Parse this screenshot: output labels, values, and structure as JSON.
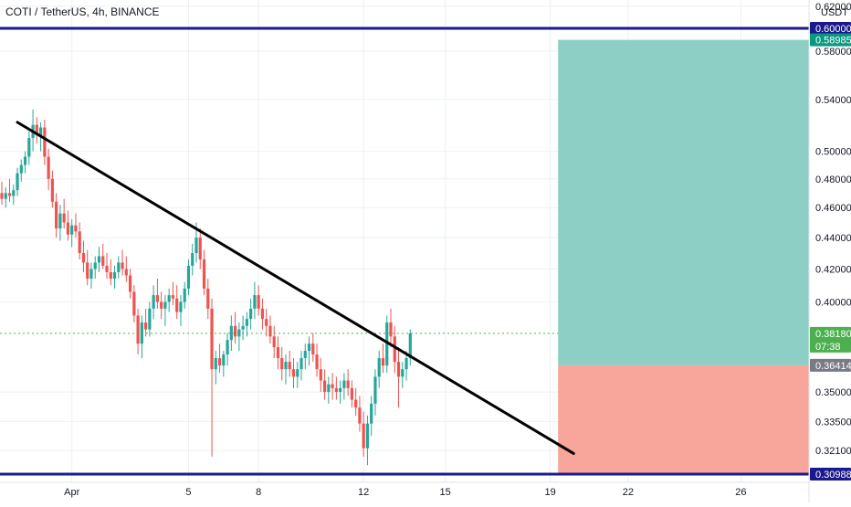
{
  "header": {
    "title": "COTI / TetherUS, 4h, BINANCE"
  },
  "colors": {
    "up": "#26a69a",
    "down": "#ef5350",
    "hline": "#1a1a8c",
    "trendline": "#000000",
    "target_zone": "#8ecfc5",
    "stop_zone": "#f8a59c",
    "current_price": "#4caf50",
    "grid": "#eef0f3"
  },
  "chart_data": {
    "type": "candlestick",
    "symbol": "COTI / TetherUS",
    "interval": "4h",
    "exchange": "BINANCE",
    "currency": "USDT",
    "y_scale": "log",
    "ylim": [
      0.305,
      0.625
    ],
    "x_ticks": [
      {
        "label": "Apr",
        "bar": 18
      },
      {
        "label": "5",
        "bar": 48
      },
      {
        "label": "8",
        "bar": 66
      },
      {
        "label": "12",
        "bar": 93
      },
      {
        "label": "15",
        "bar": 114
      },
      {
        "label": "19",
        "bar": 141
      },
      {
        "label": "22",
        "bar": 161
      },
      {
        "label": "26",
        "bar": 190
      }
    ],
    "x_bar_range": [
      0,
      204
    ],
    "y_ticks": [
      0.62,
      0.58,
      0.54,
      0.5,
      0.48,
      0.46,
      0.44,
      0.42,
      0.4,
      0.35,
      0.335,
      0.321
    ],
    "y_tick_labels": [
      "0.62000",
      "0.58000",
      "0.54000",
      "0.50000",
      "0.48000",
      "0.46000",
      "0.44000",
      "0.42000",
      "0.40000",
      "0.35000",
      "0.33500",
      "0.32100"
    ],
    "price_badges": [
      {
        "label": "0.60000",
        "value": 0.6,
        "kind": "hline"
      },
      {
        "label": "0.58985",
        "value": 0.58985,
        "kind": "target"
      },
      {
        "label": "0.38180",
        "sub": "07:38",
        "value": 0.3818,
        "kind": "current"
      },
      {
        "label": "0.36414",
        "value": 0.36414,
        "kind": "entry"
      },
      {
        "label": "0.30988",
        "value": 0.30988,
        "kind": "hline"
      }
    ],
    "horizontal_lines": [
      0.6,
      0.30988
    ],
    "current_price": 0.3818,
    "trendline": {
      "from": {
        "bar": 4,
        "price": 0.522
      },
      "to": {
        "bar": 147,
        "price": 0.3195
      }
    },
    "position": {
      "start_bar": 143,
      "end_bar": 204,
      "target": 0.58985,
      "entry": 0.36414,
      "stop": 0.30988
    },
    "candles": [
      [
        0.47,
        0.478,
        0.462,
        0.466
      ],
      [
        0.466,
        0.474,
        0.46,
        0.47
      ],
      [
        0.47,
        0.48,
        0.464,
        0.468
      ],
      [
        0.468,
        0.476,
        0.462,
        0.472
      ],
      [
        0.472,
        0.488,
        0.468,
        0.484
      ],
      [
        0.484,
        0.494,
        0.478,
        0.49
      ],
      [
        0.49,
        0.5,
        0.484,
        0.496
      ],
      [
        0.496,
        0.515,
        0.49,
        0.51
      ],
      [
        0.51,
        0.532,
        0.5,
        0.52
      ],
      [
        0.52,
        0.526,
        0.506,
        0.512
      ],
      [
        0.512,
        0.522,
        0.5,
        0.518
      ],
      [
        0.518,
        0.524,
        0.49,
        0.496
      ],
      [
        0.496,
        0.502,
        0.472,
        0.48
      ],
      [
        0.48,
        0.486,
        0.46,
        0.464
      ],
      [
        0.464,
        0.47,
        0.44,
        0.446
      ],
      [
        0.446,
        0.462,
        0.438,
        0.456
      ],
      [
        0.456,
        0.466,
        0.446,
        0.45
      ],
      [
        0.45,
        0.458,
        0.438,
        0.442
      ],
      [
        0.442,
        0.452,
        0.434,
        0.448
      ],
      [
        0.448,
        0.456,
        0.44,
        0.444
      ],
      [
        0.444,
        0.45,
        0.426,
        0.43
      ],
      [
        0.43,
        0.438,
        0.418,
        0.424
      ],
      [
        0.424,
        0.432,
        0.41,
        0.414
      ],
      [
        0.414,
        0.424,
        0.408,
        0.42
      ],
      [
        0.42,
        0.428,
        0.414,
        0.424
      ],
      [
        0.424,
        0.434,
        0.418,
        0.428
      ],
      [
        0.428,
        0.436,
        0.42,
        0.422
      ],
      [
        0.422,
        0.43,
        0.414,
        0.418
      ],
      [
        0.418,
        0.426,
        0.41,
        0.414
      ],
      [
        0.414,
        0.422,
        0.408,
        0.418
      ],
      [
        0.418,
        0.428,
        0.414,
        0.424
      ],
      [
        0.424,
        0.432,
        0.416,
        0.42
      ],
      [
        0.42,
        0.428,
        0.412,
        0.416
      ],
      [
        0.416,
        0.42,
        0.402,
        0.406
      ],
      [
        0.406,
        0.41,
        0.388,
        0.392
      ],
      [
        0.392,
        0.396,
        0.37,
        0.376
      ],
      [
        0.376,
        0.392,
        0.368,
        0.388
      ],
      [
        0.388,
        0.396,
        0.38,
        0.384
      ],
      [
        0.384,
        0.4,
        0.38,
        0.396
      ],
      [
        0.396,
        0.41,
        0.39,
        0.404
      ],
      [
        0.404,
        0.414,
        0.396,
        0.4
      ],
      [
        0.4,
        0.406,
        0.39,
        0.396
      ],
      [
        0.396,
        0.404,
        0.386,
        0.4
      ],
      [
        0.4,
        0.408,
        0.394,
        0.404
      ],
      [
        0.404,
        0.412,
        0.398,
        0.402
      ],
      [
        0.402,
        0.41,
        0.39,
        0.394
      ],
      [
        0.394,
        0.404,
        0.386,
        0.4
      ],
      [
        0.4,
        0.412,
        0.396,
        0.408
      ],
      [
        0.408,
        0.426,
        0.404,
        0.422
      ],
      [
        0.422,
        0.436,
        0.416,
        0.43
      ],
      [
        0.43,
        0.45,
        0.424,
        0.44
      ],
      [
        0.44,
        0.446,
        0.42,
        0.426
      ],
      [
        0.426,
        0.432,
        0.404,
        0.408
      ],
      [
        0.408,
        0.414,
        0.39,
        0.396
      ],
      [
        0.396,
        0.402,
        0.318,
        0.362
      ],
      [
        0.362,
        0.372,
        0.354,
        0.368
      ],
      [
        0.368,
        0.376,
        0.36,
        0.364
      ],
      [
        0.364,
        0.372,
        0.358,
        0.37
      ],
      [
        0.37,
        0.382,
        0.364,
        0.378
      ],
      [
        0.378,
        0.392,
        0.372,
        0.386
      ],
      [
        0.386,
        0.394,
        0.376,
        0.38
      ],
      [
        0.38,
        0.388,
        0.372,
        0.384
      ],
      [
        0.384,
        0.392,
        0.378,
        0.386
      ],
      [
        0.386,
        0.394,
        0.38,
        0.39
      ],
      [
        0.39,
        0.402,
        0.384,
        0.396
      ],
      [
        0.396,
        0.412,
        0.39,
        0.404
      ],
      [
        0.404,
        0.41,
        0.392,
        0.396
      ],
      [
        0.396,
        0.402,
        0.384,
        0.39
      ],
      [
        0.39,
        0.396,
        0.38,
        0.386
      ],
      [
        0.386,
        0.392,
        0.376,
        0.38
      ],
      [
        0.38,
        0.386,
        0.368,
        0.374
      ],
      [
        0.374,
        0.38,
        0.362,
        0.368
      ],
      [
        0.368,
        0.374,
        0.356,
        0.362
      ],
      [
        0.362,
        0.37,
        0.354,
        0.366
      ],
      [
        0.366,
        0.372,
        0.358,
        0.362
      ],
      [
        0.362,
        0.368,
        0.352,
        0.358
      ],
      [
        0.358,
        0.366,
        0.352,
        0.362
      ],
      [
        0.362,
        0.372,
        0.356,
        0.368
      ],
      [
        0.368,
        0.376,
        0.362,
        0.372
      ],
      [
        0.372,
        0.38,
        0.364,
        0.376
      ],
      [
        0.376,
        0.382,
        0.366,
        0.37
      ],
      [
        0.37,
        0.376,
        0.358,
        0.362
      ],
      [
        0.362,
        0.368,
        0.35,
        0.356
      ],
      [
        0.356,
        0.362,
        0.346,
        0.35
      ],
      [
        0.35,
        0.358,
        0.344,
        0.354
      ],
      [
        0.354,
        0.36,
        0.346,
        0.352
      ],
      [
        0.352,
        0.358,
        0.346,
        0.35
      ],
      [
        0.35,
        0.356,
        0.344,
        0.352
      ],
      [
        0.352,
        0.36,
        0.346,
        0.356
      ],
      [
        0.356,
        0.362,
        0.348,
        0.352
      ],
      [
        0.352,
        0.356,
        0.342,
        0.346
      ],
      [
        0.346,
        0.352,
        0.338,
        0.342
      ],
      [
        0.342,
        0.348,
        0.33,
        0.334
      ],
      [
        0.334,
        0.34,
        0.318,
        0.322
      ],
      [
        0.322,
        0.338,
        0.314,
        0.334
      ],
      [
        0.334,
        0.348,
        0.328,
        0.344
      ],
      [
        0.344,
        0.362,
        0.338,
        0.358
      ],
      [
        0.358,
        0.372,
        0.352,
        0.368
      ],
      [
        0.368,
        0.376,
        0.36,
        0.364
      ],
      [
        0.364,
        0.392,
        0.36,
        0.388
      ],
      [
        0.388,
        0.396,
        0.374,
        0.38
      ],
      [
        0.38,
        0.386,
        0.36,
        0.366
      ],
      [
        0.366,
        0.374,
        0.342,
        0.358
      ],
      [
        0.358,
        0.366,
        0.352,
        0.362
      ],
      [
        0.362,
        0.372,
        0.356,
        0.368
      ],
      [
        0.368,
        0.384,
        0.364,
        0.3818
      ]
    ],
    "candle_start_bar": 0
  }
}
